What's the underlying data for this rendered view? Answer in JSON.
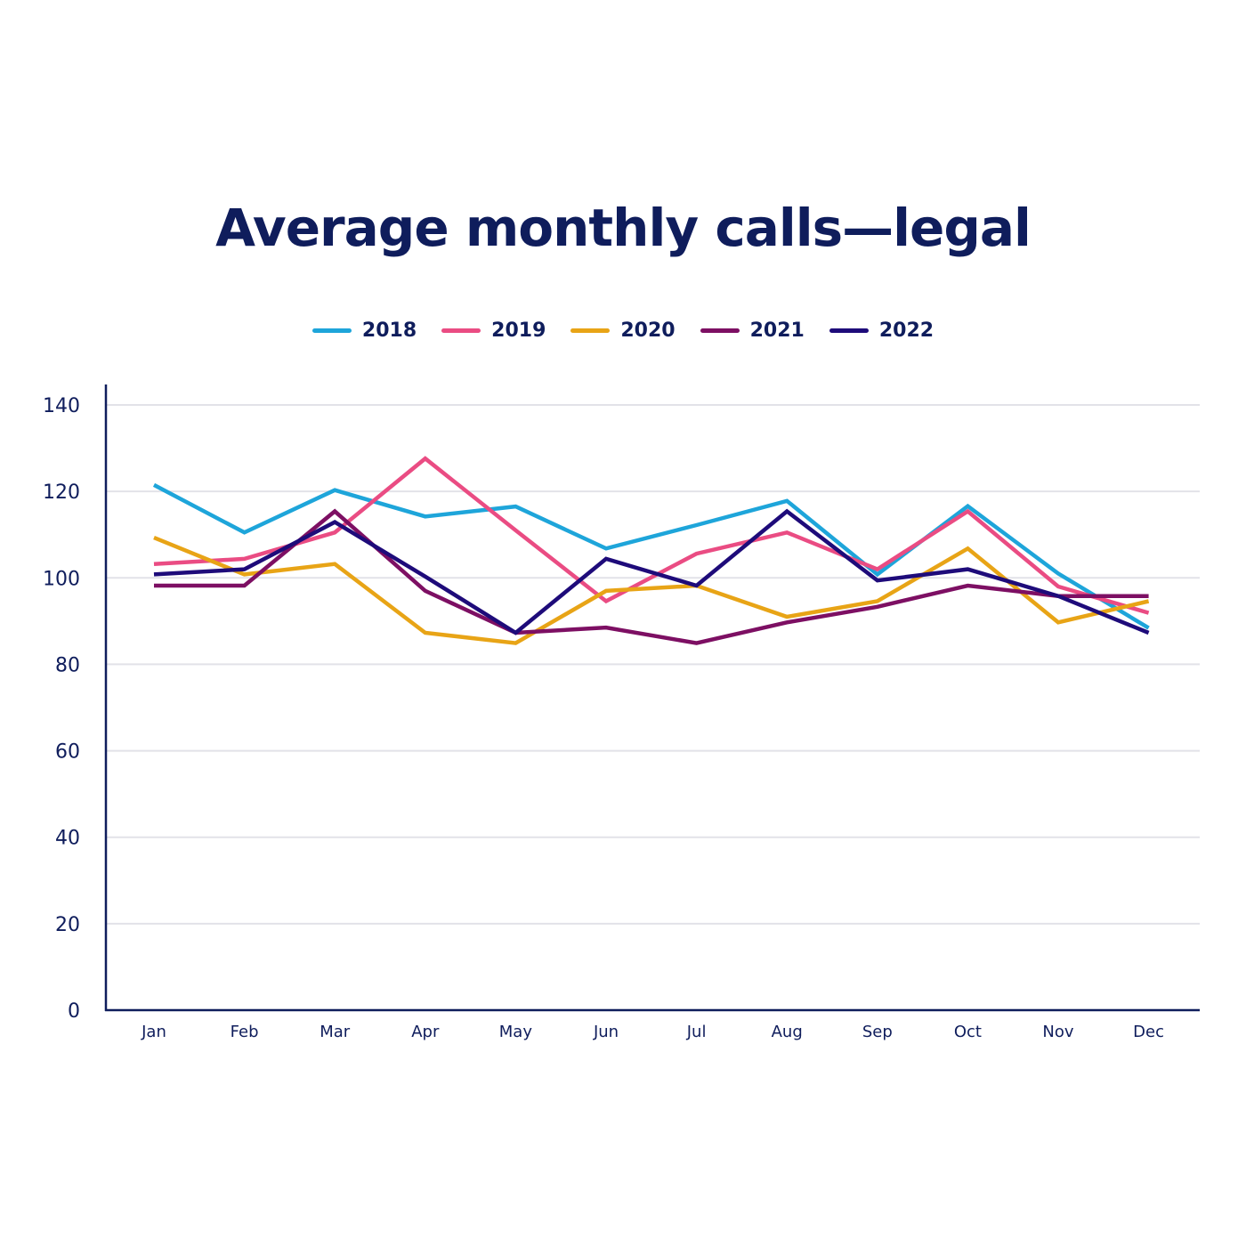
{
  "chart_data": {
    "type": "line",
    "title": "Average monthly calls—legal",
    "xlabel": "",
    "ylabel": "",
    "categories": [
      "Jan",
      "Feb",
      "Mar",
      "Apr",
      "May",
      "Jun",
      "Jul",
      "Aug",
      "Sep",
      "Oct",
      "Nov",
      "Dec"
    ],
    "ylim": [
      0,
      140
    ],
    "yticks": [
      "0",
      "20",
      "40",
      "60",
      "80",
      "100",
      "120",
      "140"
    ],
    "grid": true,
    "legend_position": "top-center",
    "series": [
      {
        "name": "2018",
        "color": "#1ea5da",
        "values": [
          121.5,
          110.5,
          120.3,
          114.2,
          116.5,
          106.8,
          112.2,
          117.8,
          100.8,
          116.6,
          101.0,
          88.4
        ]
      },
      {
        "name": "2019",
        "color": "#ea4c83",
        "values": [
          103.2,
          104.4,
          110.5,
          127.6,
          111.0,
          94.6,
          105.6,
          110.5,
          102.0,
          115.4,
          98.0,
          91.9
        ]
      },
      {
        "name": "2020",
        "color": "#e8a416",
        "values": [
          109.3,
          100.8,
          103.2,
          87.3,
          84.9,
          97.0,
          98.2,
          91.0,
          94.6,
          106.8,
          89.7,
          94.6
        ]
      },
      {
        "name": "2021",
        "color": "#7d0f63",
        "values": [
          98.2,
          98.2,
          115.4,
          97.0,
          87.3,
          88.5,
          84.9,
          89.7,
          93.3,
          98.2,
          95.8,
          95.8
        ]
      },
      {
        "name": "2022",
        "color": "#1e0b7a",
        "values": [
          100.8,
          102.0,
          112.9,
          100.3,
          87.3,
          104.4,
          98.2,
          115.4,
          99.4,
          102.0,
          95.8,
          87.3
        ]
      }
    ]
  }
}
